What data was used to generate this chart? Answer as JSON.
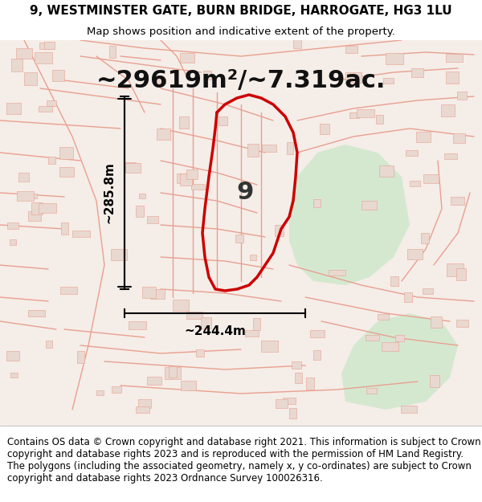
{
  "title_line1": "9, WESTMINSTER GATE, BURN BRIDGE, HARROGATE, HG3 1LU",
  "title_line2": "Map shows position and indicative extent of the property.",
  "area_text": "~29619m²/~7.319ac.",
  "property_number": "9",
  "dim_vertical": "~285.8m",
  "dim_horizontal": "~244.4m",
  "footer_text": "Contains OS data © Crown copyright and database right 2021. This information is subject to Crown copyright and database rights 2023 and is reproduced with the permission of HM Land Registry. The polygons (including the associated geometry, namely x, y co-ordinates) are subject to Crown copyright and database rights 2023 Ordnance Survey 100026316.",
  "map_bg_color": "#f5ede8",
  "map_area_color": "#f0ebe6",
  "green_area_color": "#d4e8d0",
  "road_color": "#e8a090",
  "boundary_color": "#cc0000",
  "title_bg_color": "#ffffff",
  "footer_bg_color": "#ffffff",
  "dim_line_color": "#000000",
  "annotation_color": "#000000",
  "title_fontsize": 11,
  "subtitle_fontsize": 9.5,
  "area_fontsize": 22,
  "property_num_fontsize": 22,
  "dim_fontsize": 11,
  "footer_fontsize": 8.5
}
